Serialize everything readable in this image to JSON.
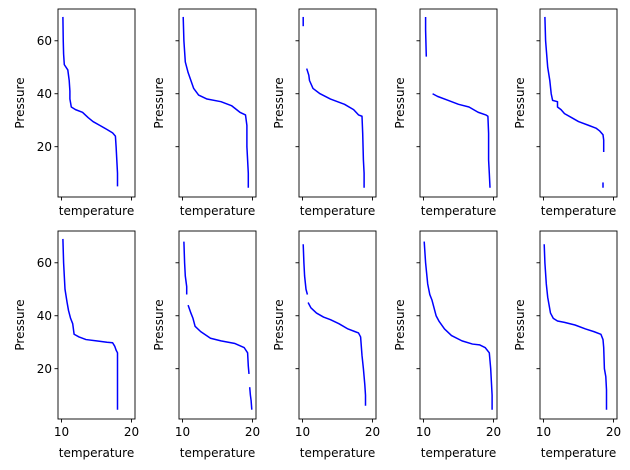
{
  "chart_data": {
    "type": "line",
    "layout": {
      "rows": 2,
      "cols": 5
    },
    "xlabel": "temperature",
    "ylabel": "Pressure",
    "xlim": [
      9.5,
      20.5
    ],
    "ylim": [
      1,
      72
    ],
    "x_ticks": [
      10,
      20
    ],
    "y_ticks": [
      20,
      40,
      60
    ],
    "line_color": "#0000ff",
    "shared_y": true,
    "shared_x": true,
    "panels": [
      {
        "segments": [
          [
            [
              10.2,
              69
            ],
            [
              10.25,
              60
            ],
            [
              10.3,
              55
            ],
            [
              10.4,
              51
            ],
            [
              10.9,
              49
            ],
            [
              11.1,
              45
            ],
            [
              11.2,
              41
            ],
            [
              11.2,
              38
            ],
            [
              11.4,
              35
            ],
            [
              12,
              34
            ],
            [
              13,
              33
            ],
            [
              13.8,
              31
            ],
            [
              14.5,
              29.5
            ],
            [
              15.5,
              28
            ],
            [
              16.5,
              26.5
            ],
            [
              17.3,
              25.2
            ],
            [
              17.7,
              24
            ],
            [
              17.8,
              20
            ],
            [
              17.9,
              15
            ],
            [
              18,
              10
            ],
            [
              18,
              5
            ]
          ]
        ]
      },
      {
        "segments": [
          [
            [
              10.1,
              69
            ],
            [
              10.2,
              60
            ],
            [
              10.4,
              52
            ],
            [
              10.8,
              48
            ],
            [
              11.2,
              45
            ],
            [
              11.6,
              42
            ],
            [
              12.3,
              39.5
            ],
            [
              13.5,
              38
            ],
            [
              15.5,
              37
            ],
            [
              17,
              35.5
            ],
            [
              18.2,
              33
            ],
            [
              19,
              32
            ],
            [
              19.2,
              28
            ],
            [
              19.2,
              20
            ],
            [
              19.3,
              15
            ],
            [
              19.4,
              10
            ],
            [
              19.4,
              4.5
            ]
          ]
        ]
      },
      {
        "segments": [
          [
            [
              10.1,
              69
            ],
            [
              10.1,
              65.5
            ]
          ],
          [
            [
              10.6,
              49.5
            ],
            [
              10.9,
              47
            ],
            [
              11,
              45
            ],
            [
              11.5,
              42
            ],
            [
              12.5,
              40
            ],
            [
              14,
              38
            ],
            [
              16,
              36
            ],
            [
              17.3,
              34
            ],
            [
              18,
              32
            ],
            [
              18.5,
              31.5
            ],
            [
              18.6,
              25
            ],
            [
              18.7,
              15
            ],
            [
              18.8,
              10
            ],
            [
              18.8,
              4.5
            ]
          ]
        ]
      },
      {
        "segments": [
          [
            [
              10.3,
              69
            ],
            [
              10.3,
              64
            ],
            [
              10.4,
              54
            ]
          ],
          [
            [
              11.3,
              40
            ],
            [
              12,
              39
            ],
            [
              13.5,
              37.5
            ],
            [
              15,
              36
            ],
            [
              16.5,
              35
            ],
            [
              17.8,
              33
            ],
            [
              18.9,
              32
            ],
            [
              19.2,
              31.5
            ],
            [
              19.3,
              25
            ],
            [
              19.3,
              15
            ],
            [
              19.4,
              10
            ],
            [
              19.5,
              4.5
            ]
          ]
        ]
      },
      {
        "segments": [
          [
            [
              10.2,
              69
            ],
            [
              10.3,
              60
            ],
            [
              10.6,
              50
            ],
            [
              10.9,
              45
            ],
            [
              11.1,
              40
            ],
            [
              11.3,
              37.5
            ],
            [
              12,
              37
            ],
            [
              12,
              35
            ],
            [
              12.5,
              34
            ],
            [
              13,
              32.5
            ],
            [
              14,
              31
            ],
            [
              15,
              29.5
            ],
            [
              16.5,
              28
            ],
            [
              17.5,
              27
            ],
            [
              18,
              26
            ],
            [
              18.5,
              24.5
            ],
            [
              18.6,
              22.5
            ],
            [
              18.6,
              18
            ]
          ],
          [
            [
              18.5,
              6.5
            ],
            [
              18.5,
              4.5
            ]
          ]
        ]
      },
      {
        "segments": [
          [
            [
              10.2,
              69
            ],
            [
              10.3,
              60
            ],
            [
              10.5,
              50
            ],
            [
              10.8,
              45
            ],
            [
              11,
              42
            ],
            [
              11.3,
              39
            ],
            [
              11.6,
              37
            ],
            [
              11.8,
              33
            ],
            [
              12.5,
              32
            ],
            [
              13.5,
              31
            ],
            [
              15,
              30.5
            ],
            [
              16.5,
              30
            ],
            [
              17.3,
              29.8
            ],
            [
              17.6,
              28.5
            ],
            [
              17.8,
              27
            ],
            [
              18,
              26
            ],
            [
              18,
              20
            ],
            [
              18,
              15
            ],
            [
              18,
              10
            ],
            [
              18,
              4.5
            ]
          ]
        ]
      },
      {
        "segments": [
          [
            [
              10.2,
              68
            ],
            [
              10.3,
              60
            ],
            [
              10.4,
              55
            ],
            [
              10.6,
              51
            ],
            [
              10.6,
              48
            ]
          ],
          [
            [
              10.8,
              44
            ],
            [
              11.2,
              41
            ],
            [
              11.5,
              39
            ],
            [
              11.8,
              36
            ],
            [
              12.6,
              34
            ],
            [
              14,
              31.5
            ],
            [
              15.5,
              30.5
            ],
            [
              17.5,
              29.5
            ],
            [
              18.8,
              28
            ],
            [
              19.3,
              26
            ],
            [
              19.4,
              21
            ],
            [
              19.5,
              18
            ]
          ],
          [
            [
              19.6,
              13
            ],
            [
              19.7,
              10
            ],
            [
              19.8,
              8
            ],
            [
              19.9,
              4.5
            ]
          ]
        ]
      },
      {
        "segments": [
          [
            [
              10.1,
              67
            ],
            [
              10.2,
              60
            ],
            [
              10.3,
              55
            ],
            [
              10.5,
              50
            ],
            [
              10.7,
              48
            ]
          ],
          [
            [
              10.8,
              45
            ],
            [
              11.2,
              43
            ],
            [
              12,
              41
            ],
            [
              13,
              39.5
            ],
            [
              14,
              38.5
            ],
            [
              15.2,
              37
            ],
            [
              16.5,
              35
            ],
            [
              17.5,
              34
            ],
            [
              18,
              33.5
            ],
            [
              18.3,
              32
            ],
            [
              18.5,
              25
            ],
            [
              18.7,
              20
            ],
            [
              18.9,
              14
            ],
            [
              19,
              10
            ],
            [
              19,
              6
            ]
          ]
        ]
      },
      {
        "segments": [
          [
            [
              10.1,
              68
            ],
            [
              10.3,
              60
            ],
            [
              10.6,
              52
            ],
            [
              10.9,
              48
            ],
            [
              11.2,
              46
            ],
            [
              11.8,
              40
            ],
            [
              12.2,
              38
            ],
            [
              13,
              35
            ],
            [
              14,
              32.5
            ],
            [
              15.5,
              30.5
            ],
            [
              17,
              29.3
            ],
            [
              18,
              29
            ],
            [
              18.8,
              28
            ],
            [
              19.4,
              26
            ],
            [
              19.6,
              20
            ],
            [
              19.7,
              15
            ],
            [
              19.8,
              10
            ],
            [
              19.8,
              6
            ],
            [
              19.8,
              4.5
            ]
          ]
        ]
      },
      {
        "segments": [
          [
            [
              10.1,
              67
            ],
            [
              10.2,
              60
            ],
            [
              10.4,
              52
            ],
            [
              10.6,
              47
            ],
            [
              11,
              41
            ],
            [
              11.4,
              39
            ],
            [
              12,
              38
            ],
            [
              13,
              37.5
            ],
            [
              14.5,
              36.5
            ],
            [
              16,
              35
            ],
            [
              17.2,
              34
            ],
            [
              18.2,
              33
            ],
            [
              18.5,
              31
            ],
            [
              18.6,
              28
            ],
            [
              18.7,
              20
            ],
            [
              18.9,
              17
            ],
            [
              19,
              12
            ],
            [
              19,
              8
            ],
            [
              19,
              4.5
            ]
          ]
        ]
      }
    ]
  }
}
